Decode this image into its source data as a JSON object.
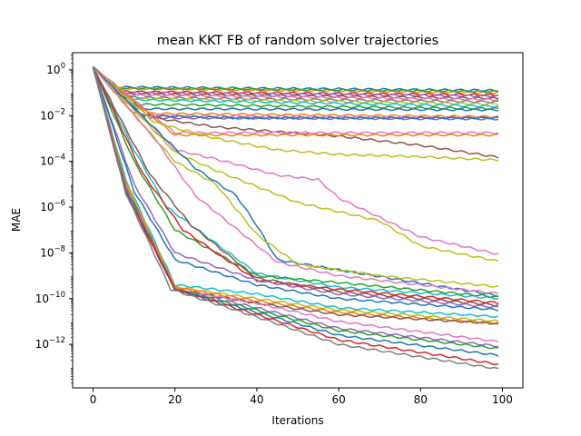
{
  "chart_data": {
    "type": "line",
    "title": "mean KKT FB of random solver trajectories",
    "xlabel": "Iterations",
    "ylabel": "MAE",
    "xlim": [
      -5,
      105
    ],
    "ylim_log10": [
      -13.9,
      0.75
    ],
    "y_scale": "log",
    "grid": false,
    "legend": "none",
    "x_ticks": [
      {
        "value": 0,
        "label": "0"
      },
      {
        "value": 20,
        "label": "20"
      },
      {
        "value": 40,
        "label": "40"
      },
      {
        "value": 60,
        "label": "60"
      },
      {
        "value": 80,
        "label": "80"
      },
      {
        "value": 100,
        "label": "100"
      }
    ],
    "y_ticks": [
      {
        "exp": 0,
        "base": "10",
        "sup": "0"
      },
      {
        "exp": -2,
        "base": "10",
        "sup": "−2"
      },
      {
        "exp": -4,
        "base": "10",
        "sup": "−4"
      },
      {
        "exp": -6,
        "base": "10",
        "sup": "−6"
      },
      {
        "exp": -8,
        "base": "10",
        "sup": "−8"
      },
      {
        "exp": -10,
        "base": "10",
        "sup": "−10"
      },
      {
        "exp": -12,
        "base": "10",
        "sup": "−12"
      }
    ],
    "series": [
      {
        "color": "#1f77b4",
        "points": [
          [
            0,
            0.1
          ],
          [
            6,
            -0.75
          ],
          [
            100,
            -0.9
          ]
        ]
      },
      {
        "color": "#ff7f0e",
        "points": [
          [
            0,
            0.1
          ],
          [
            5,
            -0.8
          ],
          [
            100,
            -1.0
          ]
        ]
      },
      {
        "color": "#2ca02c",
        "points": [
          [
            0,
            0.15
          ],
          [
            6,
            -0.8
          ],
          [
            100,
            -0.95
          ]
        ]
      },
      {
        "color": "#d62728",
        "points": [
          [
            0,
            0.1
          ],
          [
            7,
            -0.95
          ],
          [
            100,
            -1.1
          ]
        ]
      },
      {
        "color": "#9467bd",
        "points": [
          [
            0,
            0.1
          ],
          [
            7,
            -1.0
          ],
          [
            100,
            -1.15
          ]
        ]
      },
      {
        "color": "#8c564b",
        "points": [
          [
            0,
            0.1
          ],
          [
            8,
            -1.05
          ],
          [
            100,
            -1.25
          ]
        ]
      },
      {
        "color": "#e377c2",
        "points": [
          [
            0,
            0.1
          ],
          [
            8,
            -1.1
          ],
          [
            100,
            -1.3
          ]
        ]
      },
      {
        "color": "#7f7f7f",
        "points": [
          [
            0,
            0.1
          ],
          [
            8,
            -1.2
          ],
          [
            100,
            -1.4
          ]
        ]
      },
      {
        "color": "#bcbd22",
        "points": [
          [
            0,
            0.1
          ],
          [
            9,
            -1.25
          ],
          [
            100,
            -1.5
          ]
        ]
      },
      {
        "color": "#17becf",
        "points": [
          [
            0,
            0.1
          ],
          [
            9,
            -1.3
          ],
          [
            100,
            -1.6
          ]
        ]
      },
      {
        "color": "#2ca02c",
        "points": [
          [
            0,
            0.1
          ],
          [
            9,
            -1.5
          ],
          [
            100,
            -1.7
          ]
        ]
      },
      {
        "color": "#1f77b4",
        "points": [
          [
            0,
            0.1
          ],
          [
            10,
            -1.7
          ],
          [
            100,
            -1.75
          ]
        ]
      },
      {
        "color": "#ff7f0e",
        "points": [
          [
            0,
            0.1
          ],
          [
            10,
            -1.9
          ],
          [
            100,
            -2.05
          ]
        ]
      },
      {
        "color": "#e377c2",
        "points": [
          [
            0,
            0.1
          ],
          [
            12,
            -2.0
          ],
          [
            100,
            -2.1
          ]
        ]
      },
      {
        "color": "#9467bd",
        "points": [
          [
            0,
            0.1
          ],
          [
            14,
            -2.1
          ],
          [
            100,
            -2.15
          ]
        ]
      },
      {
        "color": "#1f77b4",
        "points": [
          [
            0,
            0.1
          ],
          [
            12,
            -2.0
          ],
          [
            35,
            -2.1
          ],
          [
            100,
            -2.1
          ]
        ]
      },
      {
        "color": "#8c564b",
        "points": [
          [
            0,
            0.1
          ],
          [
            15,
            -2.1
          ],
          [
            30,
            -2.5
          ],
          [
            45,
            -2.7
          ],
          [
            60,
            -2.9
          ],
          [
            80,
            -3.3
          ],
          [
            100,
            -3.85
          ]
        ]
      },
      {
        "color": "#e377c2",
        "points": [
          [
            0,
            0.1
          ],
          [
            20,
            -2.75
          ],
          [
            100,
            -2.75
          ]
        ]
      },
      {
        "color": "#ff7f0e",
        "points": [
          [
            0,
            0.1
          ],
          [
            20,
            -2.85
          ],
          [
            100,
            -2.85
          ]
        ]
      },
      {
        "color": "#bcbd22",
        "points": [
          [
            0,
            0.1
          ],
          [
            15,
            -2.3
          ],
          [
            30,
            -3.0
          ],
          [
            45,
            -3.5
          ],
          [
            60,
            -3.7
          ],
          [
            80,
            -3.8
          ],
          [
            100,
            -3.95
          ]
        ]
      },
      {
        "color": "#e377c2",
        "points": [
          [
            0,
            0.1
          ],
          [
            20,
            -3.5
          ],
          [
            30,
            -3.9
          ],
          [
            45,
            -4.6
          ],
          [
            55,
            -4.8
          ],
          [
            60,
            -5.6
          ],
          [
            80,
            -7.3
          ],
          [
            100,
            -8.1
          ]
        ]
      },
      {
        "color": "#bcbd22",
        "points": [
          [
            0,
            0.1
          ],
          [
            20,
            -3.6
          ],
          [
            30,
            -4.4
          ],
          [
            50,
            -5.8
          ],
          [
            70,
            -6.6
          ],
          [
            80,
            -7.7
          ],
          [
            100,
            -8.4
          ]
        ]
      },
      {
        "color": "#1f77b4",
        "points": [
          [
            0,
            0.1
          ],
          [
            25,
            -4.3
          ],
          [
            35,
            -5.5
          ],
          [
            40,
            -6.8
          ],
          [
            45,
            -8.3
          ],
          [
            55,
            -8.6
          ],
          [
            100,
            -9.9
          ]
        ]
      },
      {
        "color": "#bcbd22",
        "points": [
          [
            0,
            0.1
          ],
          [
            20,
            -4.0
          ],
          [
            30,
            -5.0
          ],
          [
            40,
            -7.2
          ],
          [
            50,
            -8.5
          ],
          [
            70,
            -9.0
          ],
          [
            100,
            -9.5
          ]
        ]
      },
      {
        "color": "#e377c2",
        "points": [
          [
            0,
            0.1
          ],
          [
            15,
            -3.0
          ],
          [
            25,
            -5.5
          ],
          [
            45,
            -8.4
          ],
          [
            60,
            -9.0
          ],
          [
            100,
            -9.8
          ]
        ]
      },
      {
        "color": "#17becf",
        "points": [
          [
            0,
            0.1
          ],
          [
            10,
            -3.5
          ],
          [
            18,
            -6.0
          ],
          [
            40,
            -8.9
          ],
          [
            60,
            -9.5
          ],
          [
            100,
            -10.0
          ]
        ]
      },
      {
        "color": "#2ca02c",
        "points": [
          [
            0,
            0.1
          ],
          [
            10,
            -4.0
          ],
          [
            20,
            -7.0
          ],
          [
            40,
            -9.0
          ],
          [
            60,
            -9.3
          ],
          [
            100,
            -9.95
          ]
        ]
      },
      {
        "color": "#d62728",
        "points": [
          [
            0,
            0.1
          ],
          [
            12,
            -4.5
          ],
          [
            22,
            -7.0
          ],
          [
            40,
            -9.2
          ],
          [
            60,
            -9.6
          ],
          [
            100,
            -10.2
          ]
        ]
      },
      {
        "color": "#8c564b",
        "points": [
          [
            0,
            0.1
          ],
          [
            14,
            -4.6
          ],
          [
            24,
            -6.8
          ],
          [
            40,
            -9.1
          ],
          [
            60,
            -9.7
          ],
          [
            100,
            -10.3
          ]
        ]
      },
      {
        "color": "#9467bd",
        "points": [
          [
            0,
            0.1
          ],
          [
            10,
            -5.0
          ],
          [
            20,
            -8.0
          ],
          [
            40,
            -9.2
          ],
          [
            60,
            -9.8
          ],
          [
            100,
            -10.4
          ]
        ]
      },
      {
        "color": "#1f77b4",
        "points": [
          [
            0,
            0.1
          ],
          [
            10,
            -5.3
          ],
          [
            20,
            -8.3
          ],
          [
            40,
            -9.4
          ],
          [
            60,
            -10.0
          ],
          [
            100,
            -10.5
          ]
        ]
      },
      {
        "color": "#17becf",
        "points": [
          [
            0,
            0.1
          ],
          [
            8,
            -4.8
          ],
          [
            20,
            -9.4
          ],
          [
            40,
            -9.8
          ],
          [
            60,
            -10.4
          ],
          [
            100,
            -10.8
          ]
        ]
      },
      {
        "color": "#bcbd22",
        "points": [
          [
            0,
            0.1
          ],
          [
            8,
            -4.9
          ],
          [
            20,
            -9.5
          ],
          [
            40,
            -10.0
          ],
          [
            60,
            -10.5
          ],
          [
            100,
            -11.0
          ]
        ]
      },
      {
        "color": "#ff7f0e",
        "points": [
          [
            0,
            0.1
          ],
          [
            8,
            -5.0
          ],
          [
            20,
            -9.5
          ],
          [
            40,
            -10.1
          ],
          [
            60,
            -10.6
          ],
          [
            100,
            -11.1
          ]
        ]
      },
      {
        "color": "#8c564b",
        "points": [
          [
            0,
            0.1
          ],
          [
            8,
            -5.1
          ],
          [
            20,
            -9.6
          ],
          [
            40,
            -10.2
          ],
          [
            60,
            -10.7
          ],
          [
            100,
            -11.1
          ]
        ]
      },
      {
        "color": "#e377c2",
        "points": [
          [
            0,
            0.1
          ],
          [
            8,
            -5.2
          ],
          [
            20,
            -9.6
          ],
          [
            40,
            -10.2
          ],
          [
            60,
            -11.0
          ],
          [
            100,
            -11.9
          ]
        ]
      },
      {
        "color": "#9467bd",
        "points": [
          [
            0,
            0.1
          ],
          [
            8,
            -5.2
          ],
          [
            20,
            -9.6
          ],
          [
            40,
            -10.4
          ],
          [
            60,
            -11.3
          ],
          [
            100,
            -12.1
          ]
        ]
      },
      {
        "color": "#2ca02c",
        "points": [
          [
            0,
            0.1
          ],
          [
            8,
            -5.3
          ],
          [
            20,
            -9.6
          ],
          [
            40,
            -10.5
          ],
          [
            60,
            -11.4
          ],
          [
            100,
            -12.2
          ]
        ]
      },
      {
        "color": "#1f77b4",
        "points": [
          [
            0,
            0.1
          ],
          [
            8,
            -5.3
          ],
          [
            20,
            -9.6
          ],
          [
            40,
            -10.6
          ],
          [
            60,
            -11.6
          ],
          [
            100,
            -12.5
          ]
        ]
      },
      {
        "color": "#d62728",
        "points": [
          [
            0,
            0.1
          ],
          [
            8,
            -5.4
          ],
          [
            20,
            -9.6
          ],
          [
            40,
            -10.7
          ],
          [
            60,
            -11.8
          ],
          [
            100,
            -12.9
          ]
        ]
      },
      {
        "color": "#7f7f7f",
        "points": [
          [
            0,
            0.1
          ],
          [
            8,
            -5.4
          ],
          [
            19,
            -9.6
          ],
          [
            40,
            -10.8
          ],
          [
            60,
            -12.0
          ],
          [
            100,
            -13.1
          ]
        ]
      }
    ]
  }
}
